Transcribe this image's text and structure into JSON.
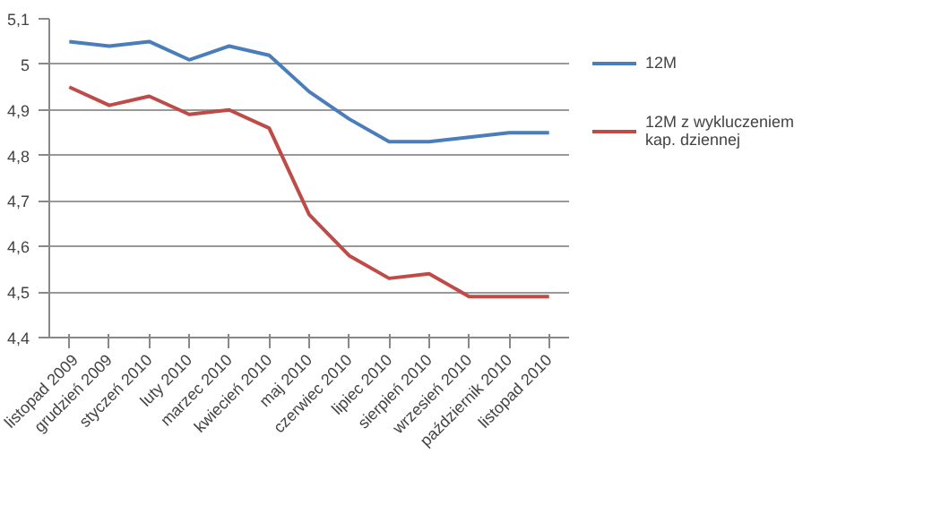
{
  "chart_data": {
    "type": "line",
    "categories": [
      "listopad 2009",
      "grudzień 2009",
      "styczeń 2010",
      "luty 2010",
      "marzec 2010",
      "kwiecień 2010",
      "maj 2010",
      "czerwiec 2010",
      "lipiec 2010",
      "sierpień 2010",
      "wrzesień 2010",
      "październik 2010",
      "listopad 2010"
    ],
    "series": [
      {
        "name": "12M",
        "color": "#4a7ebb",
        "values": [
          5.05,
          5.04,
          5.05,
          5.01,
          5.04,
          5.02,
          4.94,
          4.88,
          4.83,
          4.83,
          4.84,
          4.85,
          4.85
        ]
      },
      {
        "name": "12M z wykluczeniem kap. dziennej",
        "color": "#be4b48",
        "values": [
          4.95,
          4.91,
          4.93,
          4.89,
          4.9,
          4.86,
          4.67,
          4.58,
          4.53,
          4.54,
          4.49,
          4.49,
          4.49
        ]
      }
    ],
    "ylim": [
      4.4,
      5.1
    ],
    "yticks": [
      {
        "value": 4.4,
        "label": "4,4"
      },
      {
        "value": 4.5,
        "label": "4,5"
      },
      {
        "value": 4.6,
        "label": "4,6"
      },
      {
        "value": 4.7,
        "label": "4,7"
      },
      {
        "value": 4.8,
        "label": "4,8"
      },
      {
        "value": 4.9,
        "label": "4,9"
      },
      {
        "value": 5,
        "label": "5"
      },
      {
        "value": 5.1,
        "label": "5,1"
      }
    ],
    "grid": "y",
    "legend": "right",
    "marker": "none",
    "line_style": "solid"
  }
}
